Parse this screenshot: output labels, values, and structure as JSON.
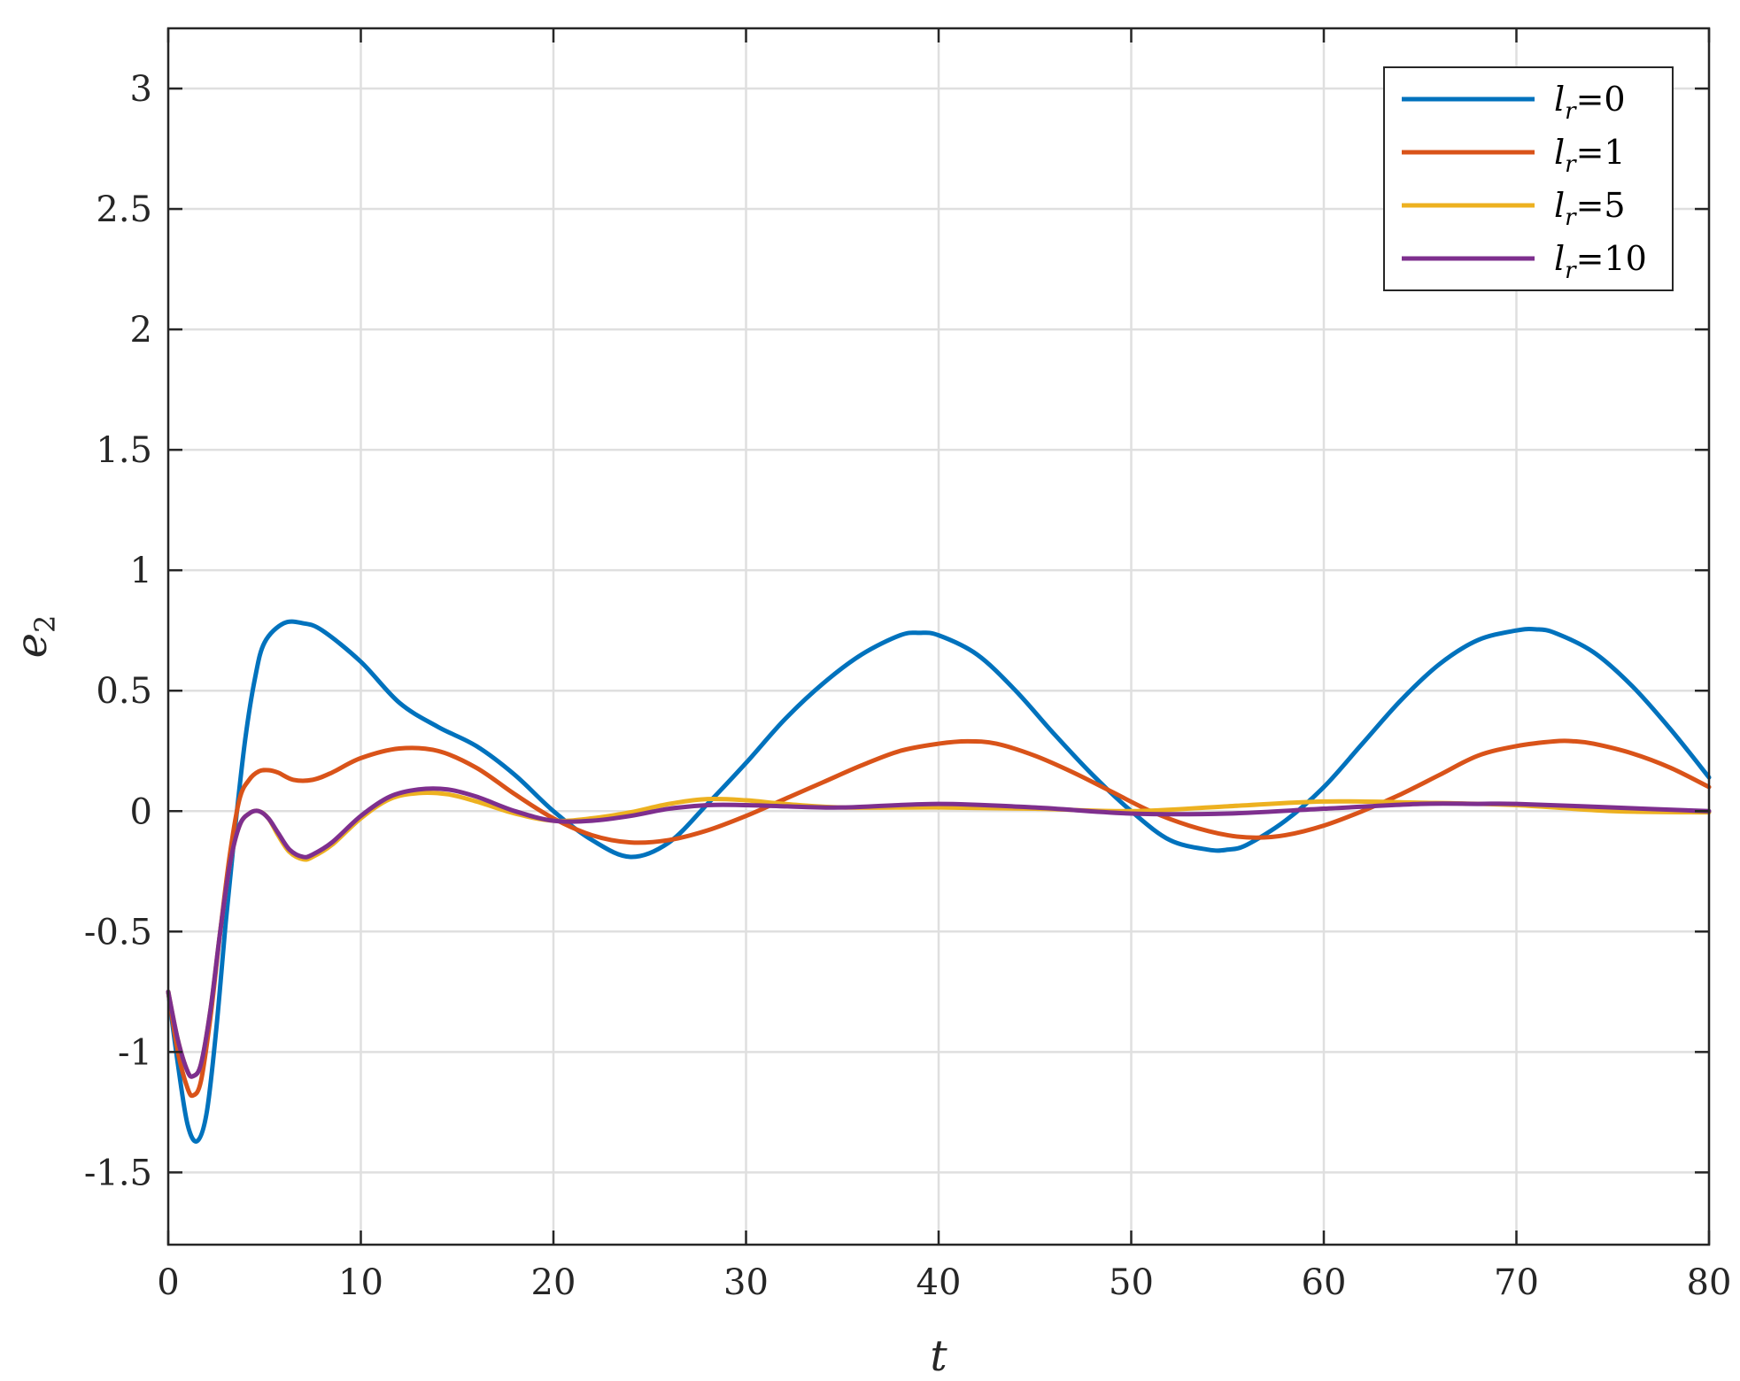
{
  "chart_data": {
    "type": "line",
    "title": "",
    "xlabel": "t",
    "ylabel": "e",
    "ylabel_subscript": "2",
    "xlim": [
      0,
      80
    ],
    "ylim": [
      -1.8,
      3.25
    ],
    "xticks": [
      0,
      10,
      20,
      30,
      40,
      50,
      60,
      70,
      80
    ],
    "yticks": [
      -1.5,
      -1,
      -0.5,
      0,
      0.5,
      1,
      1.5,
      2,
      2.5,
      3
    ],
    "xtick_labels": [
      "0",
      "10",
      "20",
      "30",
      "40",
      "50",
      "60",
      "70",
      "80"
    ],
    "ytick_labels": [
      "-1.5",
      "-1",
      "-0.5",
      "0",
      "0.5",
      "1",
      "1.5",
      "2",
      "2.5",
      "3"
    ],
    "grid": true,
    "legend_position": "top-right",
    "series": [
      {
        "name": "l_r=0",
        "legend_var": "l",
        "legend_sub": "r",
        "legend_val": "=0",
        "color": "#0072BD",
        "x": [
          0,
          0.5,
          1,
          1.5,
          2,
          2.5,
          3,
          3.5,
          4,
          4.5,
          5,
          6,
          7,
          8,
          10,
          12,
          14,
          16,
          18,
          20,
          22,
          24,
          26,
          28,
          30,
          32,
          34,
          36,
          38,
          39,
          40,
          42,
          44,
          46,
          48,
          50,
          52,
          54,
          55,
          56,
          58,
          60,
          62,
          64,
          66,
          68,
          70,
          71,
          72,
          74,
          76,
          78,
          80
        ],
        "y": [
          -0.75,
          -1.05,
          -1.3,
          -1.37,
          -1.25,
          -0.9,
          -0.45,
          -0.05,
          0.3,
          0.55,
          0.7,
          0.78,
          0.78,
          0.75,
          0.62,
          0.45,
          0.35,
          0.27,
          0.15,
          0.0,
          -0.12,
          -0.19,
          -0.13,
          0.03,
          0.2,
          0.38,
          0.53,
          0.65,
          0.73,
          0.74,
          0.73,
          0.65,
          0.5,
          0.32,
          0.15,
          0.0,
          -0.12,
          -0.16,
          -0.16,
          -0.14,
          -0.04,
          0.1,
          0.28,
          0.46,
          0.61,
          0.71,
          0.75,
          0.755,
          0.74,
          0.66,
          0.52,
          0.34,
          0.14
        ]
      },
      {
        "name": "l_r=1",
        "legend_var": "l",
        "legend_sub": "r",
        "legend_val": "=1",
        "color": "#D95319",
        "x": [
          0,
          0.5,
          1,
          1.3,
          1.7,
          2.2,
          2.7,
          3.2,
          3.7,
          4.2,
          4.7,
          5.2,
          5.7,
          6.5,
          7.5,
          8.5,
          10,
          12,
          14,
          16,
          18,
          20,
          22,
          24,
          26,
          28,
          30,
          32,
          34,
          36,
          38,
          40,
          41.5,
          43,
          45,
          47,
          49,
          51,
          53,
          55,
          56.5,
          58,
          60,
          62,
          64,
          66,
          68,
          70,
          72,
          73,
          74,
          76,
          78,
          80
        ],
        "y": [
          -0.75,
          -1.0,
          -1.15,
          -1.18,
          -1.12,
          -0.85,
          -0.5,
          -0.18,
          0.05,
          0.13,
          0.165,
          0.17,
          0.16,
          0.13,
          0.13,
          0.16,
          0.22,
          0.26,
          0.25,
          0.18,
          0.07,
          -0.03,
          -0.1,
          -0.13,
          -0.12,
          -0.08,
          -0.02,
          0.05,
          0.12,
          0.19,
          0.25,
          0.28,
          0.29,
          0.28,
          0.23,
          0.16,
          0.08,
          0.0,
          -0.06,
          -0.1,
          -0.11,
          -0.1,
          -0.06,
          0.0,
          0.07,
          0.15,
          0.23,
          0.27,
          0.29,
          0.29,
          0.28,
          0.24,
          0.18,
          0.1
        ]
      },
      {
        "name": "l_r=5",
        "legend_var": "l",
        "legend_sub": "r",
        "legend_val": "=5",
        "color": "#EDB120",
        "x": [
          0,
          0.5,
          1,
          1.3,
          1.7,
          2.2,
          2.7,
          3.2,
          3.7,
          4.2,
          4.7,
          5.2,
          5.7,
          6.3,
          7,
          7.5,
          8.5,
          10,
          11.5,
          13,
          14.5,
          16,
          18,
          20,
          22,
          24,
          26,
          28,
          30,
          32,
          35,
          40,
          45,
          50,
          55,
          60,
          65,
          70,
          75,
          80
        ],
        "y": [
          -0.75,
          -0.95,
          -1.08,
          -1.1,
          -1.05,
          -0.82,
          -0.5,
          -0.22,
          -0.06,
          -0.01,
          0.0,
          -0.03,
          -0.1,
          -0.17,
          -0.2,
          -0.19,
          -0.14,
          -0.03,
          0.05,
          0.075,
          0.07,
          0.04,
          -0.01,
          -0.04,
          -0.03,
          -0.005,
          0.03,
          0.05,
          0.045,
          0.03,
          0.015,
          0.015,
          0.01,
          0.0,
          0.02,
          0.04,
          0.035,
          0.025,
          0.0,
          -0.005
        ]
      },
      {
        "name": "l_r=10",
        "legend_var": "l",
        "legend_sub": "r",
        "legend_val": "=10",
        "color": "#7E2F8E",
        "x": [
          0,
          0.5,
          1,
          1.3,
          1.7,
          2.2,
          2.7,
          3.2,
          3.7,
          4.2,
          4.7,
          5.2,
          5.7,
          6.3,
          7,
          7.5,
          8.5,
          10,
          11.5,
          13,
          14.5,
          16,
          18,
          20,
          22,
          24,
          26,
          28,
          30,
          32,
          35,
          40,
          45,
          50,
          55,
          60,
          65,
          68,
          70,
          75,
          80
        ],
        "y": [
          -0.75,
          -0.95,
          -1.08,
          -1.1,
          -1.05,
          -0.82,
          -0.5,
          -0.22,
          -0.06,
          -0.01,
          0.0,
          -0.03,
          -0.09,
          -0.16,
          -0.19,
          -0.18,
          -0.13,
          -0.02,
          0.06,
          0.09,
          0.09,
          0.06,
          0.0,
          -0.04,
          -0.04,
          -0.02,
          0.01,
          0.025,
          0.025,
          0.02,
          0.015,
          0.03,
          0.015,
          -0.01,
          -0.01,
          0.01,
          0.03,
          0.03,
          0.03,
          0.015,
          0.0
        ]
      }
    ]
  }
}
